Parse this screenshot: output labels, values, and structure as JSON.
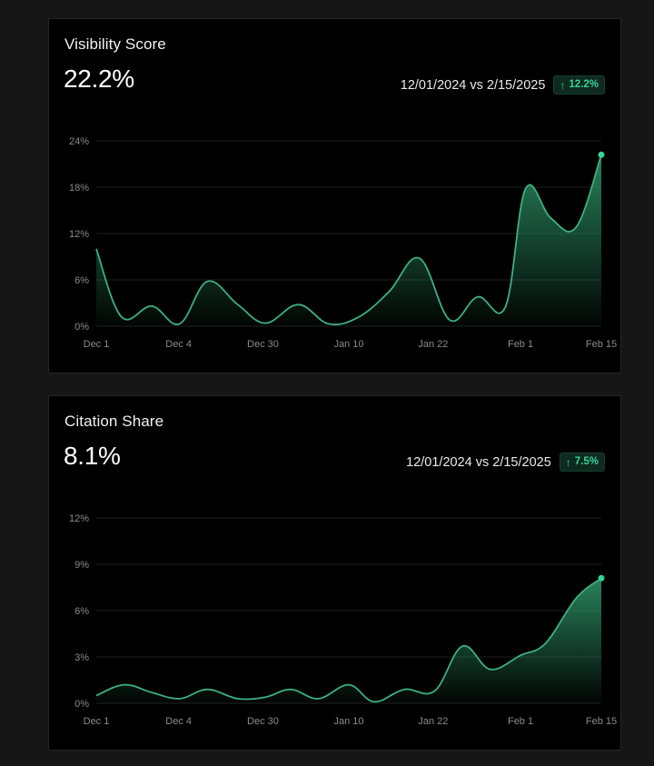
{
  "cards": [
    {
      "title": "Visibility Score",
      "value": "22.2%",
      "comparison": "12/01/2024 vs 2/15/2025",
      "delta": "12.2%",
      "delta_direction": "up",
      "arrow_icon": "↑"
    },
    {
      "title": "Citation Share",
      "value": "8.1%",
      "comparison": "12/01/2024 vs 2/15/2025",
      "delta": "7.5%",
      "delta_direction": "up",
      "arrow_icon": "↑"
    }
  ],
  "colors": {
    "accent": "#34d399",
    "line": "#3fae80",
    "background": "#000000"
  },
  "chart_data": [
    {
      "type": "area",
      "title": "",
      "xlabel": "",
      "ylabel": "",
      "ylim": [
        0,
        24
      ],
      "yticks": [
        "0%",
        "6%",
        "12%",
        "18%",
        "24%"
      ],
      "ytick_values": [
        0,
        6,
        12,
        18,
        24
      ],
      "xticks": [
        "Dec 1",
        "Dec 4",
        "Dec 30",
        "Jan 10",
        "Jan 22",
        "Feb 1",
        "Feb 15"
      ],
      "xtick_positions": [
        0,
        0.163,
        0.33,
        0.5,
        0.667,
        0.84,
        1
      ],
      "grid": true,
      "series": [
        {
          "x": [
            0,
            0.05,
            0.11,
            0.165,
            0.22,
            0.28,
            0.335,
            0.4,
            0.46,
            0.52,
            0.58,
            0.64,
            0.7,
            0.755,
            0.81,
            0.85,
            0.9,
            0.95,
            1
          ],
          "values": [
            10,
            1.2,
            2.6,
            0.3,
            5.8,
            2.8,
            0.4,
            2.8,
            0.3,
            1.2,
            4.5,
            8.8,
            0.8,
            3.8,
            2.5,
            17.8,
            14,
            12.8,
            22.2
          ]
        }
      ]
    },
    {
      "type": "area",
      "title": "",
      "xlabel": "",
      "ylabel": "",
      "ylim": [
        0,
        12
      ],
      "yticks": [
        "0%",
        "3%",
        "6%",
        "9%",
        "12%"
      ],
      "ytick_values": [
        0,
        3,
        6,
        9,
        12
      ],
      "xticks": [
        "Dec 1",
        "Dec 4",
        "Dec 30",
        "Jan 10",
        "Jan 22",
        "Feb 1",
        "Feb 15"
      ],
      "xtick_positions": [
        0,
        0.163,
        0.33,
        0.5,
        0.667,
        0.84,
        1
      ],
      "grid": true,
      "series": [
        {
          "x": [
            0,
            0.055,
            0.11,
            0.165,
            0.22,
            0.28,
            0.335,
            0.385,
            0.44,
            0.5,
            0.55,
            0.61,
            0.67,
            0.725,
            0.78,
            0.84,
            0.89,
            0.95,
            1
          ],
          "values": [
            0.5,
            1.2,
            0.7,
            0.3,
            0.9,
            0.3,
            0.4,
            0.9,
            0.3,
            1.2,
            0.1,
            0.9,
            0.8,
            3.7,
            2.2,
            3.1,
            3.9,
            6.8,
            8.1
          ]
        }
      ]
    }
  ]
}
